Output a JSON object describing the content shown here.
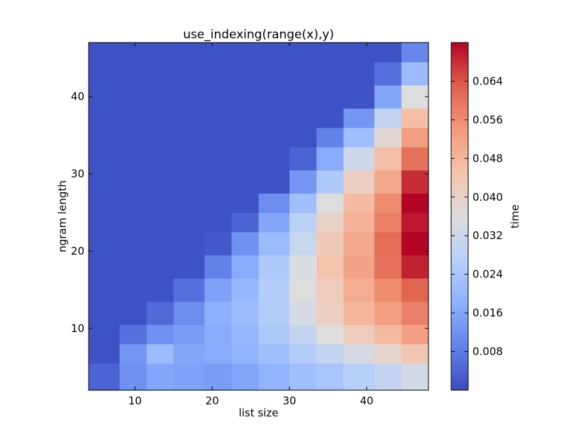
{
  "chart_data": {
    "type": "heatmap",
    "title": "use_indexing(range(x),y)",
    "xlabel": "list size",
    "ylabel": "ngram length",
    "colorbar_label": "time",
    "colormap": "coolwarm",
    "x": [
      6,
      10,
      13,
      17,
      21,
      24,
      28,
      32,
      35,
      39,
      43,
      46
    ],
    "y": [
      4,
      7,
      9,
      12,
      15,
      18,
      21,
      24,
      26,
      29,
      32,
      35,
      37,
      40,
      43,
      46
    ],
    "xlim": [
      4,
      48
    ],
    "ylim": [
      2,
      47
    ],
    "xticks": [
      10,
      20,
      30,
      40
    ],
    "yticks": [
      10,
      20,
      30,
      40
    ],
    "colorbar_ticks": [
      0.008,
      0.016,
      0.024,
      0.032,
      0.04,
      0.048,
      0.056,
      0.064
    ],
    "vmin": 0.0,
    "vmax": 0.072,
    "values": [
      [
        0.004,
        0.012,
        0.016,
        0.015,
        0.014,
        0.016,
        0.019,
        0.022,
        0.024,
        0.027,
        0.03,
        0.033
      ],
      [
        0.001,
        0.013,
        0.021,
        0.016,
        0.017,
        0.019,
        0.022,
        0.026,
        0.03,
        0.034,
        0.039,
        0.044
      ],
      [
        0.001,
        0.006,
        0.012,
        0.014,
        0.017,
        0.02,
        0.025,
        0.03,
        0.036,
        0.042,
        0.047,
        0.053
      ],
      [
        0.001,
        0.001,
        0.005,
        0.011,
        0.018,
        0.021,
        0.026,
        0.034,
        0.041,
        0.048,
        0.053,
        0.058
      ],
      [
        0.001,
        0.001,
        0.001,
        0.006,
        0.015,
        0.02,
        0.026,
        0.036,
        0.042,
        0.05,
        0.056,
        0.062
      ],
      [
        0.001,
        0.001,
        0.001,
        0.001,
        0.009,
        0.017,
        0.025,
        0.035,
        0.045,
        0.052,
        0.06,
        0.069
      ],
      [
        0.001,
        0.001,
        0.001,
        0.001,
        0.002,
        0.012,
        0.021,
        0.031,
        0.043,
        0.051,
        0.061,
        0.072
      ],
      [
        0.001,
        0.001,
        0.001,
        0.001,
        0.001,
        0.004,
        0.016,
        0.028,
        0.04,
        0.049,
        0.058,
        0.07
      ],
      [
        0.001,
        0.001,
        0.001,
        0.001,
        0.001,
        0.001,
        0.011,
        0.022,
        0.036,
        0.047,
        0.056,
        0.072
      ],
      [
        0.001,
        0.001,
        0.001,
        0.001,
        0.001,
        0.001,
        0.001,
        0.013,
        0.025,
        0.041,
        0.051,
        0.068
      ],
      [
        0.001,
        0.001,
        0.001,
        0.001,
        0.001,
        0.001,
        0.001,
        0.004,
        0.017,
        0.032,
        0.046,
        0.06
      ],
      [
        0.001,
        0.001,
        0.001,
        0.001,
        0.001,
        0.001,
        0.001,
        0.001,
        0.009,
        0.022,
        0.038,
        0.053
      ],
      [
        0.001,
        0.001,
        0.001,
        0.001,
        0.001,
        0.001,
        0.001,
        0.001,
        0.001,
        0.013,
        0.03,
        0.046
      ],
      [
        0.001,
        0.001,
        0.001,
        0.001,
        0.001,
        0.001,
        0.001,
        0.001,
        0.001,
        0.001,
        0.016,
        0.036
      ],
      [
        0.001,
        0.001,
        0.001,
        0.001,
        0.001,
        0.001,
        0.001,
        0.001,
        0.001,
        0.001,
        0.006,
        0.021
      ],
      [
        0.001,
        0.001,
        0.001,
        0.001,
        0.001,
        0.001,
        0.001,
        0.001,
        0.001,
        0.001,
        0.001,
        0.01
      ]
    ]
  }
}
